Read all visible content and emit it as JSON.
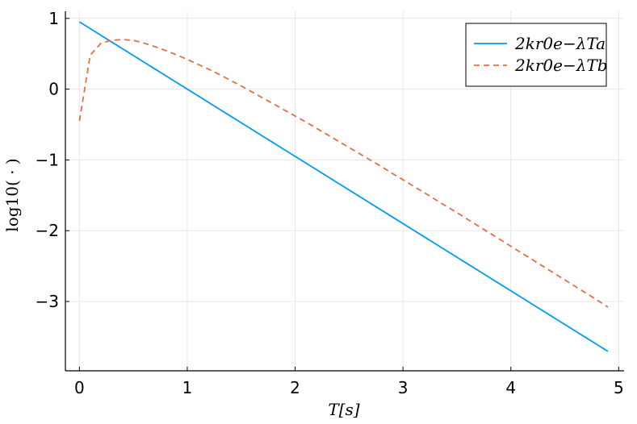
{
  "chart_data": {
    "type": "line",
    "title": "",
    "xlabel": "T[s]",
    "ylabel": "log10( · )",
    "xlim": [
      -0.13,
      5.05
    ],
    "ylim": [
      -3.98,
      1.1
    ],
    "x_ticks": [
      0,
      1,
      2,
      3,
      4,
      5
    ],
    "x_tick_labels": [
      "0",
      "1",
      "2",
      "3",
      "4",
      "5"
    ],
    "y_ticks": [
      -3,
      -2,
      -1,
      0,
      1
    ],
    "y_tick_labels": [
      "−3",
      "−2",
      "−1",
      "0",
      "1"
    ],
    "grid": true,
    "legend_position": "top-right",
    "series": [
      {
        "name": "2kr0e−λTa",
        "color": "#009af9",
        "style": "solid",
        "x": [
          0,
          0.1,
          0.2,
          0.3,
          0.4,
          0.5,
          0.6,
          0.7,
          0.8,
          0.9,
          1.0,
          1.1,
          1.2,
          1.3,
          1.4,
          1.5,
          1.6,
          1.7,
          1.8,
          1.9,
          2.0,
          2.1,
          2.2,
          2.3,
          2.4,
          2.5,
          2.6,
          2.7,
          2.8,
          2.9,
          3.0,
          3.1,
          3.2,
          3.3,
          3.4,
          3.5,
          3.6,
          3.7,
          3.8,
          3.9,
          4.0,
          4.1,
          4.2,
          4.3,
          4.4,
          4.5,
          4.6,
          4.7,
          4.8,
          4.9
        ],
        "y": [
          0.95,
          0.855,
          0.76,
          0.665,
          0.57,
          0.475,
          0.38,
          0.285,
          0.19,
          0.095,
          0.0,
          -0.095,
          -0.19,
          -0.285,
          -0.38,
          -0.475,
          -0.57,
          -0.665,
          -0.76,
          -0.855,
          -0.95,
          -1.045,
          -1.14,
          -1.235,
          -1.33,
          -1.425,
          -1.52,
          -1.615,
          -1.71,
          -1.805,
          -1.9,
          -1.995,
          -2.09,
          -2.185,
          -2.28,
          -2.375,
          -2.47,
          -2.565,
          -2.66,
          -2.755,
          -2.85,
          -2.945,
          -3.04,
          -3.135,
          -3.23,
          -3.325,
          -3.42,
          -3.515,
          -3.61,
          -3.705
        ]
      },
      {
        "name": "2kr0e−λTb",
        "color": "#e26f46",
        "style": "dashed",
        "x": [
          0,
          0.1,
          0.2,
          0.3,
          0.4,
          0.5,
          0.6,
          0.7,
          0.8,
          0.9,
          1.0,
          1.1,
          1.2,
          1.3,
          1.4,
          1.5,
          1.6,
          1.7,
          1.8,
          1.9,
          2.0,
          2.1,
          2.2,
          2.3,
          2.4,
          2.5,
          2.6,
          2.7,
          2.8,
          2.9,
          3.0,
          3.1,
          3.2,
          3.3,
          3.4,
          3.5,
          3.6,
          3.7,
          3.8,
          3.9,
          4.0,
          4.1,
          4.2,
          4.3,
          4.4,
          4.5,
          4.6,
          4.7,
          4.8,
          4.9
        ],
        "y": [
          -0.45,
          0.48,
          0.65,
          0.69,
          0.7,
          0.69,
          0.65,
          0.6,
          0.545,
          0.485,
          0.42,
          0.35,
          0.28,
          0.205,
          0.125,
          0.045,
          -0.04,
          -0.125,
          -0.21,
          -0.295,
          -0.38,
          -0.465,
          -0.555,
          -0.645,
          -0.735,
          -0.825,
          -0.915,
          -1.005,
          -1.095,
          -1.19,
          -1.28,
          -1.375,
          -1.465,
          -1.56,
          -1.655,
          -1.745,
          -1.84,
          -1.935,
          -2.03,
          -2.125,
          -2.22,
          -2.315,
          -2.41,
          -2.505,
          -2.6,
          -2.695,
          -2.79,
          -2.885,
          -2.98,
          -3.08
        ]
      }
    ]
  }
}
